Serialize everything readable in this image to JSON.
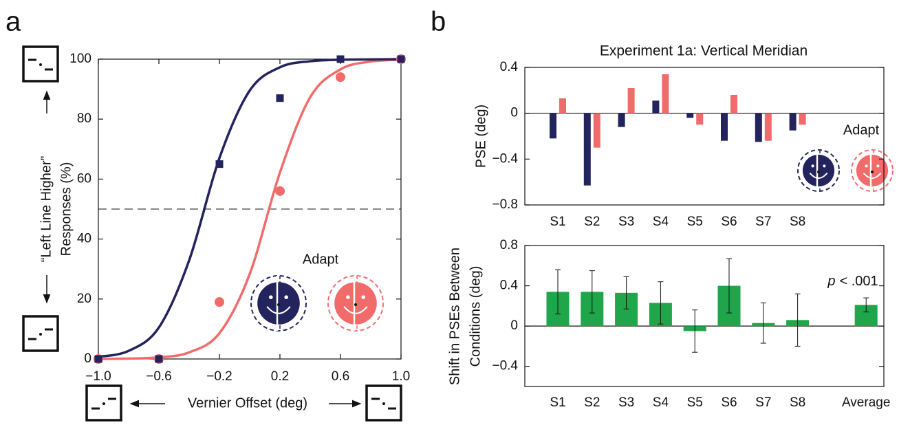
{
  "panel_labels": [
    "a",
    "b"
  ],
  "chart_data": [
    {
      "type": "scatter",
      "ylabel": [
        "“Left Line Higher”",
        "Responses (%)"
      ],
      "xlabel": "Vernier Offset (deg)",
      "annotation": "Adapt",
      "xlim": [
        -1,
        1
      ],
      "xticks": [
        {
          "value": -1,
          "label": "−1.0"
        },
        {
          "value": -0.6,
          "label": "−0.6"
        },
        {
          "value": -0.2,
          "label": "−0.2"
        },
        0.2,
        0.6,
        {
          "value": 1,
          "label": "1.0"
        }
      ],
      "ylim": [
        0,
        100
      ],
      "yticks": [
        0,
        20,
        40,
        60,
        80,
        100
      ],
      "hline": 50,
      "series": [
        {
          "color": "#23235e",
          "marker": "square",
          "x": [
            -1,
            -0.6,
            -0.2,
            0.2,
            0.6,
            1
          ],
          "values": [
            0,
            0,
            65,
            87,
            100,
            100
          ],
          "fit": {
            "x": [
              -1,
              -0.8,
              -0.6,
              -0.4,
              -0.2,
              0,
              0.2,
              0.4,
              0.6,
              0.8,
              1
            ],
            "values": [
              0.7,
              2.7,
              10.5,
              32.9,
              67,
              89.5,
              97.3,
              99.3,
              99.8,
              99.9,
              100
            ]
          }
        },
        {
          "color": "#f26b6b",
          "marker": "circle",
          "x": [
            -1,
            -0.6,
            -0.2,
            0.2,
            0.6,
            1
          ],
          "values": [
            0,
            0,
            19,
            56,
            94,
            100
          ],
          "fit": {
            "x": [
              -1,
              -0.8,
              -0.6,
              -0.4,
              -0.2,
              0,
              0.2,
              0.4,
              0.6,
              0.8,
              1
            ],
            "values": [
              0.03,
              0.13,
              0.54,
              2.2,
              8.6,
              28.3,
              62.2,
              87.3,
              96.6,
              99.2,
              99.8
            ]
          }
        }
      ]
    },
    {
      "type": "bar",
      "title": "Experiment 1a: Vertical Meridian",
      "ylabel": [
        "PSE (deg)"
      ],
      "annotation": "Adapt",
      "categories": [
        "S1",
        "S2",
        "S3",
        "S4",
        "S5",
        "S6",
        "S7",
        "S8"
      ],
      "ylim": [
        -0.8,
        0.4
      ],
      "yticks": [
        {
          "value": -0.8,
          "label": "−0.8"
        },
        {
          "value": -0.4,
          "label": "−0.4"
        },
        0,
        0.4
      ],
      "series": [
        {
          "color": "#23235e",
          "values": [
            -0.22,
            -0.63,
            -0.12,
            0.11,
            -0.04,
            -0.24,
            -0.25,
            -0.15
          ]
        },
        {
          "color": "#f26b6b",
          "values": [
            0.13,
            -0.3,
            0.22,
            0.34,
            -0.1,
            0.16,
            -0.24,
            -0.1
          ]
        }
      ]
    },
    {
      "type": "bar",
      "ylabel": [
        "Shift in PSEs Between",
        "Conditions (deg)"
      ],
      "annotation_italic": "p",
      "annotation": "< .001",
      "categories": [
        "S1",
        "S2",
        "S3",
        "S4",
        "S5",
        "S6",
        "S7",
        "S8",
        null,
        "Average"
      ],
      "ylim": [
        -0.6,
        0.8
      ],
      "yticks": [
        {
          "value": -0.4,
          "label": "−0.4"
        },
        0,
        0.4,
        0.8
      ],
      "series": [
        {
          "color": "#1fa64a",
          "values": [
            0.34,
            0.34,
            0.33,
            0.23,
            -0.05,
            0.4,
            0.03,
            0.06,
            null,
            0.21
          ],
          "errors": [
            0.22,
            0.21,
            0.16,
            0.21,
            0.21,
            0.27,
            0.2,
            0.26,
            null,
            0.07
          ]
        }
      ]
    }
  ]
}
